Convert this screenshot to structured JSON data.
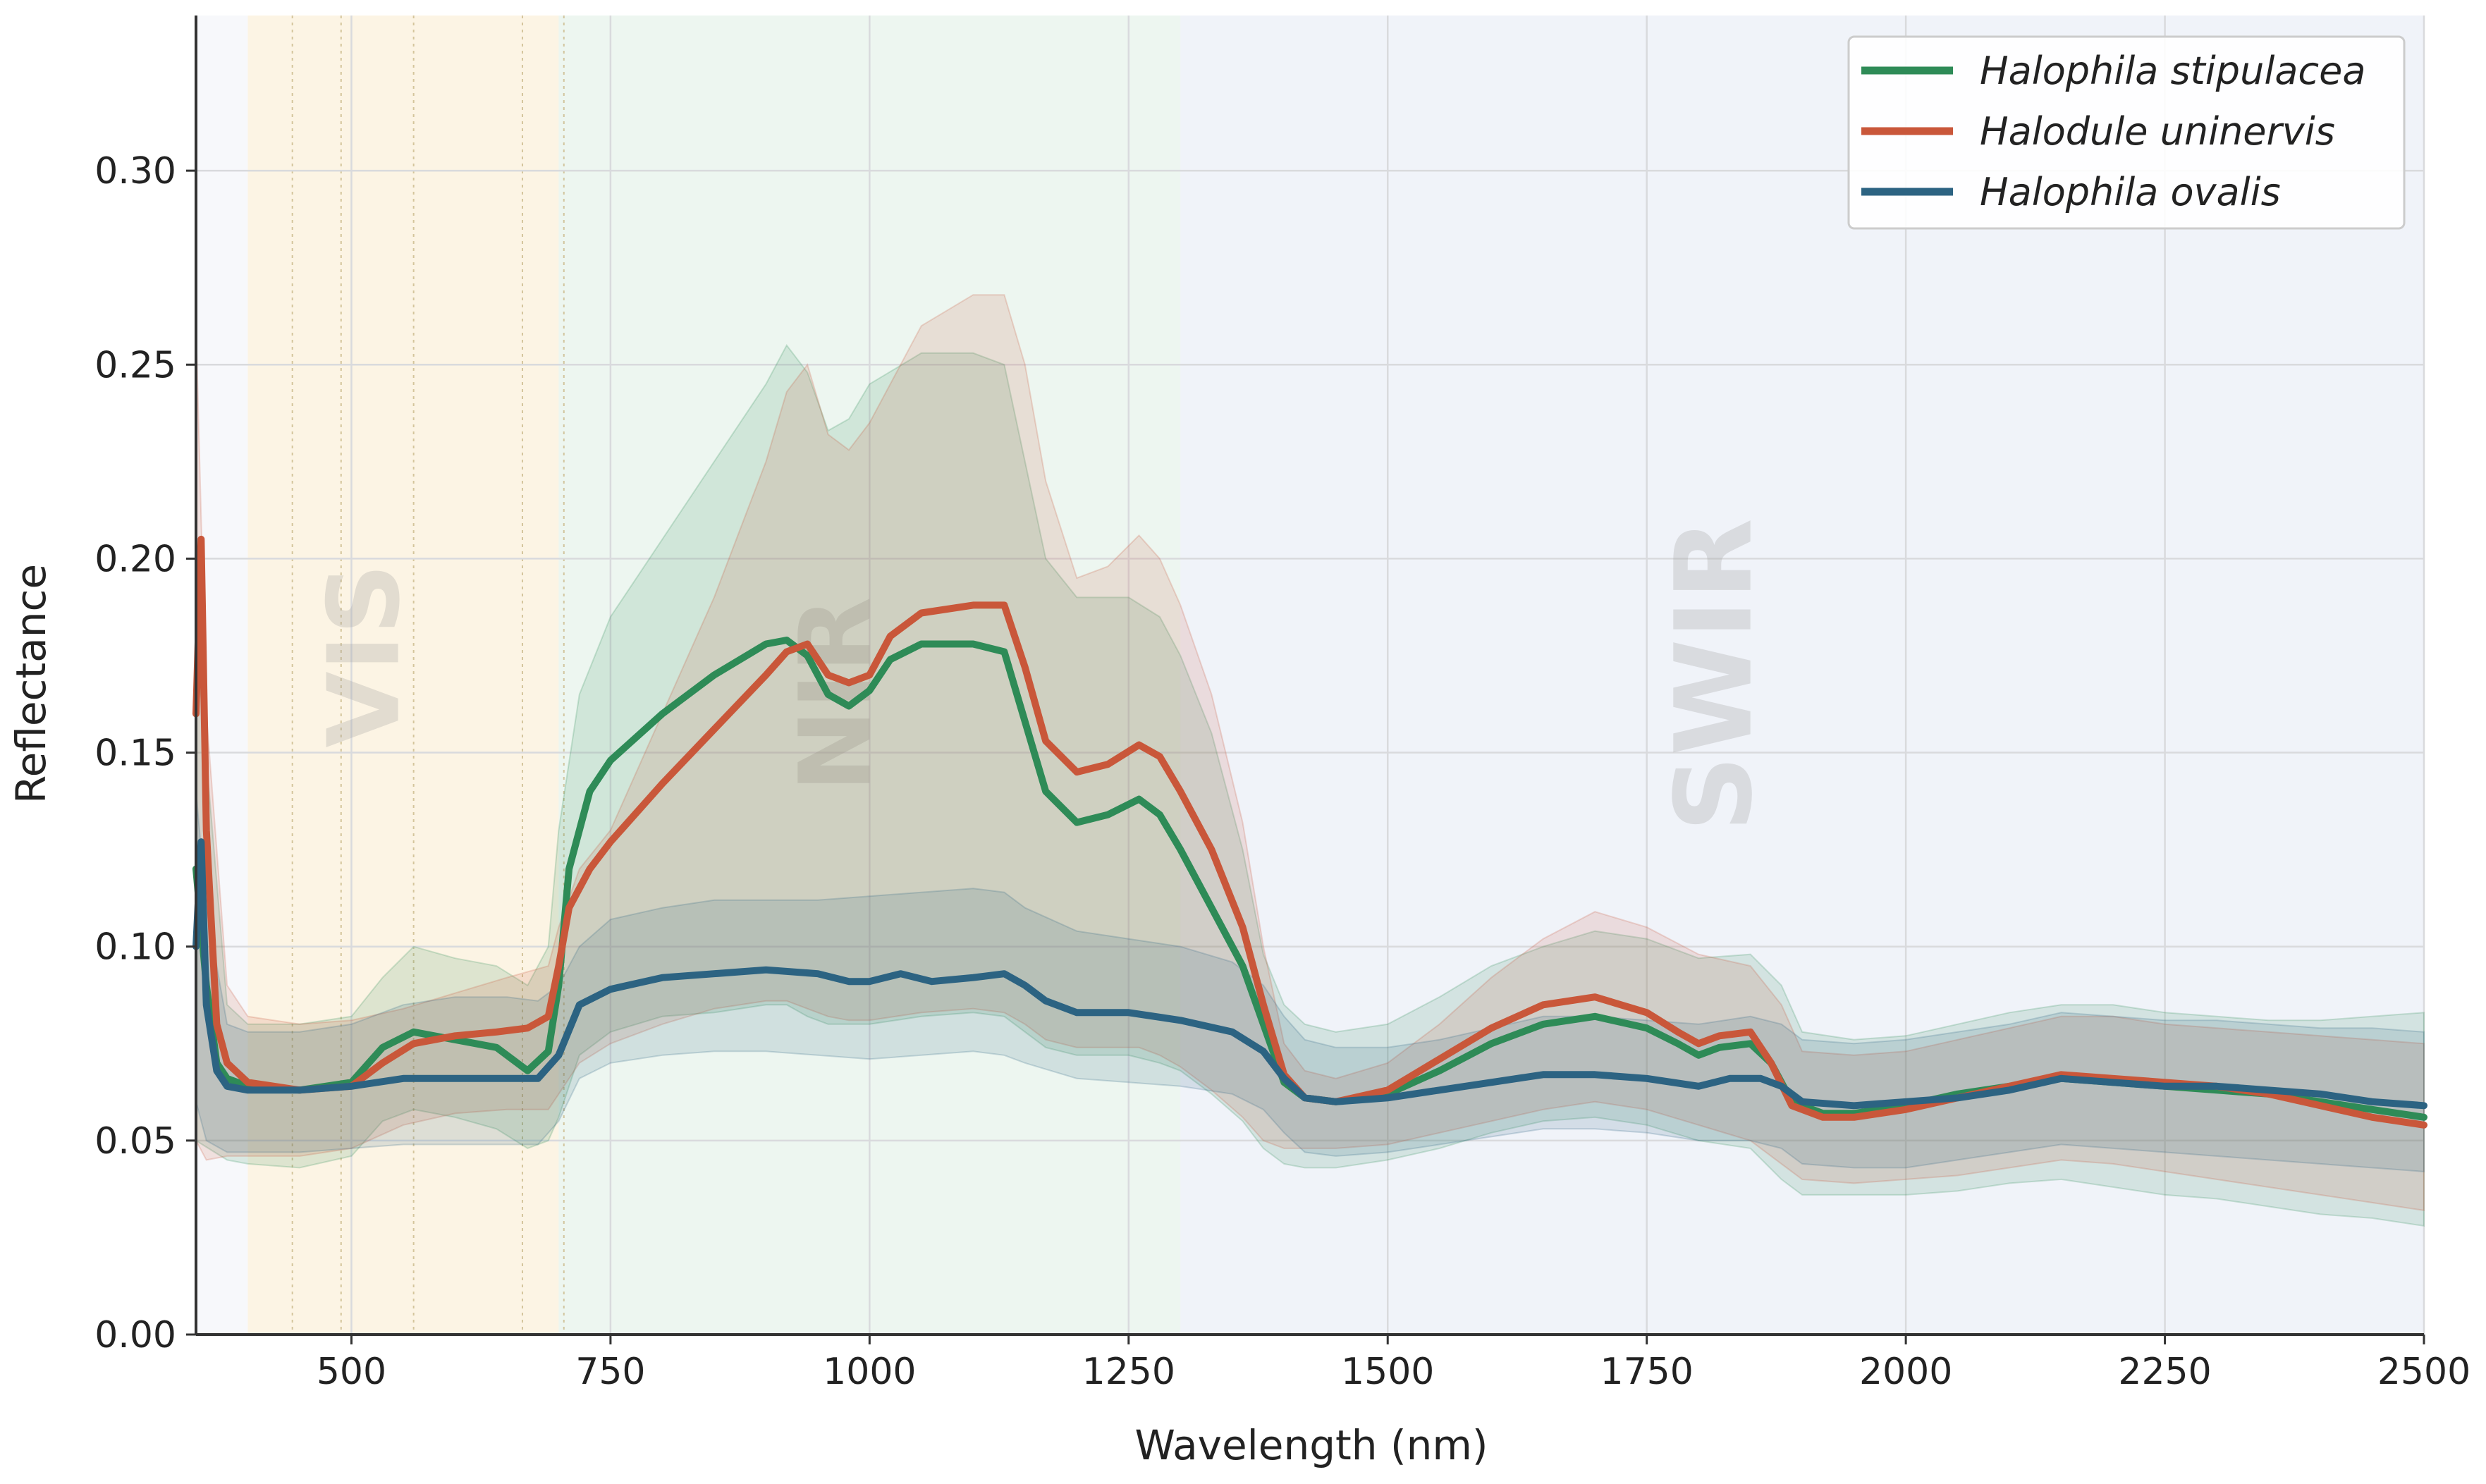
{
  "chart_data": {
    "type": "line",
    "xlabel": "Wavelength (nm)",
    "ylabel": "Reflectance",
    "xlim": [
      350,
      2500
    ],
    "ylim": [
      0.0,
      0.34
    ],
    "xticks": [
      500,
      750,
      1000,
      1250,
      1500,
      1750,
      2000,
      2250,
      2500
    ],
    "xtick_labels": [
      "500",
      "750",
      "1000",
      "1250",
      "1500",
      "1750",
      "2000",
      "2250",
      "2500"
    ],
    "yticks": [
      0.0,
      0.05,
      0.1,
      0.15,
      0.2,
      0.25,
      0.3
    ],
    "ytick_labels": [
      "0.00",
      "0.05",
      "0.10",
      "0.15",
      "0.20",
      "0.25",
      "0.30"
    ],
    "grid": true,
    "legend_position": "top-right",
    "regions": [
      {
        "label": "VIS",
        "range": [
          400,
          700
        ],
        "color": "#fdf3dc"
      },
      {
        "label": "NIR",
        "range": [
          700,
          1300
        ],
        "color": "#e9f5ec"
      },
      {
        "label": "SWIR",
        "range": [
          1300,
          2500
        ],
        "color": "#eef1f8"
      }
    ],
    "band_lines": [
      443,
      490,
      560,
      665,
      705
    ],
    "series": [
      {
        "name": "Halophila stipulacea",
        "color": "#2e8b57",
        "x": [
          350,
          360,
          370,
          380,
          400,
          450,
          500,
          530,
          560,
          600,
          640,
          670,
          690,
          700,
          710,
          730,
          750,
          800,
          850,
          900,
          920,
          940,
          960,
          980,
          1000,
          1020,
          1050,
          1100,
          1130,
          1150,
          1170,
          1200,
          1230,
          1260,
          1280,
          1300,
          1330,
          1360,
          1380,
          1400,
          1420,
          1450,
          1500,
          1550,
          1600,
          1650,
          1700,
          1750,
          1780,
          1800,
          1820,
          1850,
          1870,
          1890,
          1920,
          1950,
          2000,
          2050,
          2100,
          2150,
          2200,
          2250,
          2300,
          2350,
          2400,
          2450,
          2500
        ],
        "y": [
          0.12,
          0.09,
          0.07,
          0.066,
          0.064,
          0.063,
          0.065,
          0.074,
          0.078,
          0.076,
          0.074,
          0.068,
          0.073,
          0.09,
          0.12,
          0.14,
          0.148,
          0.16,
          0.17,
          0.178,
          0.179,
          0.175,
          0.165,
          0.162,
          0.166,
          0.174,
          0.178,
          0.178,
          0.176,
          0.158,
          0.14,
          0.132,
          0.134,
          0.138,
          0.134,
          0.125,
          0.11,
          0.095,
          0.08,
          0.065,
          0.061,
          0.06,
          0.062,
          0.068,
          0.075,
          0.08,
          0.082,
          0.079,
          0.075,
          0.072,
          0.074,
          0.075,
          0.07,
          0.06,
          0.057,
          0.057,
          0.059,
          0.062,
          0.064,
          0.066,
          0.065,
          0.064,
          0.063,
          0.062,
          0.06,
          0.058,
          0.056
        ]
      },
      {
        "name": "Halodule uninervis",
        "color": "#c9573a",
        "x": [
          350,
          355,
          360,
          370,
          380,
          400,
          450,
          500,
          530,
          560,
          600,
          640,
          670,
          690,
          700,
          710,
          730,
          750,
          800,
          850,
          900,
          920,
          940,
          960,
          980,
          1000,
          1020,
          1050,
          1100,
          1130,
          1150,
          1170,
          1200,
          1230,
          1260,
          1280,
          1300,
          1330,
          1360,
          1380,
          1400,
          1420,
          1450,
          1500,
          1550,
          1600,
          1650,
          1700,
          1750,
          1780,
          1800,
          1820,
          1850,
          1870,
          1890,
          1920,
          1950,
          2000,
          2050,
          2100,
          2150,
          2200,
          2250,
          2300,
          2350,
          2400,
          2450,
          2500
        ],
        "y": [
          0.16,
          0.205,
          0.13,
          0.08,
          0.07,
          0.065,
          0.063,
          0.064,
          0.07,
          0.075,
          0.077,
          0.078,
          0.079,
          0.082,
          0.095,
          0.11,
          0.12,
          0.127,
          0.142,
          0.156,
          0.17,
          0.176,
          0.178,
          0.17,
          0.168,
          0.17,
          0.18,
          0.186,
          0.188,
          0.188,
          0.172,
          0.153,
          0.145,
          0.147,
          0.152,
          0.149,
          0.14,
          0.125,
          0.105,
          0.085,
          0.067,
          0.061,
          0.06,
          0.063,
          0.071,
          0.079,
          0.085,
          0.087,
          0.083,
          0.078,
          0.075,
          0.077,
          0.078,
          0.07,
          0.059,
          0.056,
          0.056,
          0.058,
          0.061,
          0.064,
          0.067,
          0.066,
          0.065,
          0.064,
          0.062,
          0.059,
          0.056,
          0.054
        ]
      },
      {
        "name": "Halophila ovalis",
        "color": "#2c6382",
        "x": [
          350,
          355,
          360,
          370,
          380,
          400,
          450,
          500,
          550,
          600,
          650,
          680,
          700,
          720,
          750,
          800,
          850,
          900,
          950,
          980,
          1000,
          1030,
          1060,
          1100,
          1130,
          1150,
          1170,
          1200,
          1250,
          1300,
          1350,
          1380,
          1400,
          1420,
          1450,
          1500,
          1550,
          1600,
          1650,
          1700,
          1750,
          1800,
          1830,
          1860,
          1880,
          1900,
          1950,
          2000,
          2050,
          2100,
          2150,
          2200,
          2250,
          2300,
          2350,
          2400,
          2450,
          2500
        ],
        "y": [
          0.1,
          0.127,
          0.085,
          0.068,
          0.064,
          0.063,
          0.063,
          0.064,
          0.066,
          0.066,
          0.066,
          0.066,
          0.072,
          0.085,
          0.089,
          0.092,
          0.093,
          0.094,
          0.093,
          0.091,
          0.091,
          0.093,
          0.091,
          0.092,
          0.093,
          0.09,
          0.086,
          0.083,
          0.083,
          0.081,
          0.078,
          0.073,
          0.066,
          0.061,
          0.06,
          0.061,
          0.063,
          0.065,
          0.067,
          0.067,
          0.066,
          0.064,
          0.066,
          0.066,
          0.064,
          0.06,
          0.059,
          0.06,
          0.061,
          0.063,
          0.066,
          0.065,
          0.064,
          0.064,
          0.063,
          0.062,
          0.06,
          0.059
        ]
      }
    ],
    "bands": [
      {
        "series": "Halophila stipulacea",
        "color": "#2e8b57",
        "x": [
          350,
          380,
          400,
          450,
          500,
          530,
          560,
          600,
          640,
          670,
          690,
          700,
          720,
          750,
          800,
          850,
          900,
          920,
          940,
          960,
          980,
          1000,
          1050,
          1100,
          1130,
          1150,
          1170,
          1200,
          1250,
          1280,
          1300,
          1330,
          1360,
          1380,
          1400,
          1420,
          1450,
          1500,
          1550,
          1600,
          1650,
          1700,
          1750,
          1800,
          1850,
          1880,
          1900,
          1950,
          2000,
          2050,
          2100,
          2150,
          2200,
          2250,
          2300,
          2350,
          2400,
          2450,
          2500
        ],
        "upper": [
          0.18,
          0.085,
          0.08,
          0.08,
          0.082,
          0.092,
          0.1,
          0.097,
          0.095,
          0.09,
          0.1,
          0.13,
          0.165,
          0.185,
          0.205,
          0.225,
          0.245,
          0.255,
          0.248,
          0.233,
          0.236,
          0.245,
          0.253,
          0.253,
          0.25,
          0.225,
          0.2,
          0.19,
          0.19,
          0.185,
          0.175,
          0.155,
          0.125,
          0.098,
          0.085,
          0.08,
          0.078,
          0.08,
          0.087,
          0.095,
          0.1,
          0.104,
          0.102,
          0.097,
          0.098,
          0.09,
          0.078,
          0.076,
          0.077,
          0.08,
          0.083,
          0.085,
          0.085,
          0.083,
          0.082,
          0.081,
          0.081,
          0.082,
          0.083
        ],
        "lower": [
          0.05,
          0.045,
          0.044,
          0.043,
          0.046,
          0.055,
          0.058,
          0.056,
          0.053,
          0.048,
          0.05,
          0.056,
          0.072,
          0.078,
          0.082,
          0.083,
          0.085,
          0.085,
          0.082,
          0.08,
          0.08,
          0.08,
          0.082,
          0.083,
          0.082,
          0.078,
          0.074,
          0.072,
          0.072,
          0.07,
          0.068,
          0.062,
          0.055,
          0.048,
          0.044,
          0.043,
          0.043,
          0.045,
          0.048,
          0.052,
          0.055,
          0.056,
          0.054,
          0.05,
          0.048,
          0.04,
          0.036,
          0.036,
          0.036,
          0.037,
          0.039,
          0.04,
          0.038,
          0.036,
          0.035,
          0.033,
          0.031,
          0.03,
          0.028
        ]
      },
      {
        "series": "Halodule uninervis",
        "color": "#c9573a",
        "x": [
          350,
          360,
          380,
          400,
          450,
          500,
          550,
          600,
          650,
          690,
          700,
          720,
          750,
          800,
          850,
          900,
          920,
          940,
          960,
          980,
          1000,
          1050,
          1100,
          1130,
          1150,
          1170,
          1200,
          1230,
          1260,
          1280,
          1300,
          1330,
          1360,
          1380,
          1400,
          1420,
          1450,
          1500,
          1550,
          1600,
          1650,
          1700,
          1750,
          1800,
          1850,
          1880,
          1900,
          1950,
          2000,
          2050,
          2100,
          2150,
          2200,
          2250,
          2300,
          2350,
          2400,
          2450,
          2500
        ],
        "upper": [
          0.26,
          0.16,
          0.09,
          0.082,
          0.08,
          0.081,
          0.084,
          0.088,
          0.092,
          0.095,
          0.105,
          0.12,
          0.13,
          0.16,
          0.19,
          0.225,
          0.243,
          0.25,
          0.232,
          0.228,
          0.235,
          0.26,
          0.268,
          0.268,
          0.25,
          0.22,
          0.195,
          0.198,
          0.206,
          0.2,
          0.188,
          0.165,
          0.132,
          0.1,
          0.075,
          0.068,
          0.066,
          0.07,
          0.08,
          0.092,
          0.102,
          0.109,
          0.105,
          0.098,
          0.095,
          0.085,
          0.073,
          0.072,
          0.073,
          0.076,
          0.079,
          0.082,
          0.082,
          0.08,
          0.079,
          0.078,
          0.077,
          0.076,
          0.075
        ],
        "lower": [
          0.05,
          0.045,
          0.046,
          0.046,
          0.046,
          0.048,
          0.054,
          0.057,
          0.058,
          0.058,
          0.062,
          0.07,
          0.075,
          0.08,
          0.084,
          0.086,
          0.086,
          0.084,
          0.082,
          0.081,
          0.081,
          0.083,
          0.084,
          0.083,
          0.08,
          0.076,
          0.074,
          0.074,
          0.074,
          0.072,
          0.069,
          0.063,
          0.056,
          0.05,
          0.048,
          0.048,
          0.048,
          0.049,
          0.052,
          0.055,
          0.058,
          0.06,
          0.058,
          0.054,
          0.05,
          0.044,
          0.04,
          0.039,
          0.04,
          0.041,
          0.043,
          0.045,
          0.044,
          0.042,
          0.04,
          0.038,
          0.036,
          0.034,
          0.032
        ]
      },
      {
        "series": "Halophila ovalis",
        "color": "#2c6382",
        "x": [
          350,
          360,
          380,
          400,
          450,
          500,
          550,
          600,
          650,
          680,
          700,
          720,
          750,
          800,
          850,
          900,
          950,
          1000,
          1050,
          1100,
          1130,
          1150,
          1200,
          1250,
          1300,
          1350,
          1380,
          1400,
          1420,
          1450,
          1500,
          1550,
          1600,
          1650,
          1700,
          1750,
          1800,
          1850,
          1880,
          1900,
          1950,
          2000,
          2050,
          2100,
          2150,
          2200,
          2250,
          2300,
          2350,
          2400,
          2450,
          2500
        ],
        "upper": [
          0.14,
          0.11,
          0.08,
          0.078,
          0.078,
          0.08,
          0.085,
          0.087,
          0.087,
          0.086,
          0.09,
          0.1,
          0.107,
          0.11,
          0.112,
          0.112,
          0.112,
          0.113,
          0.114,
          0.115,
          0.114,
          0.11,
          0.104,
          0.102,
          0.1,
          0.096,
          0.09,
          0.082,
          0.076,
          0.074,
          0.074,
          0.076,
          0.079,
          0.082,
          0.082,
          0.081,
          0.08,
          0.082,
          0.08,
          0.076,
          0.075,
          0.076,
          0.078,
          0.08,
          0.083,
          0.082,
          0.081,
          0.081,
          0.08,
          0.079,
          0.079,
          0.078
        ],
        "lower": [
          0.06,
          0.05,
          0.047,
          0.047,
          0.047,
          0.048,
          0.049,
          0.049,
          0.049,
          0.049,
          0.055,
          0.066,
          0.07,
          0.072,
          0.073,
          0.073,
          0.072,
          0.071,
          0.072,
          0.073,
          0.072,
          0.07,
          0.066,
          0.065,
          0.064,
          0.062,
          0.058,
          0.052,
          0.047,
          0.046,
          0.047,
          0.049,
          0.051,
          0.053,
          0.053,
          0.052,
          0.05,
          0.05,
          0.048,
          0.044,
          0.043,
          0.043,
          0.045,
          0.047,
          0.049,
          0.048,
          0.047,
          0.046,
          0.045,
          0.044,
          0.043,
          0.042
        ]
      }
    ]
  }
}
